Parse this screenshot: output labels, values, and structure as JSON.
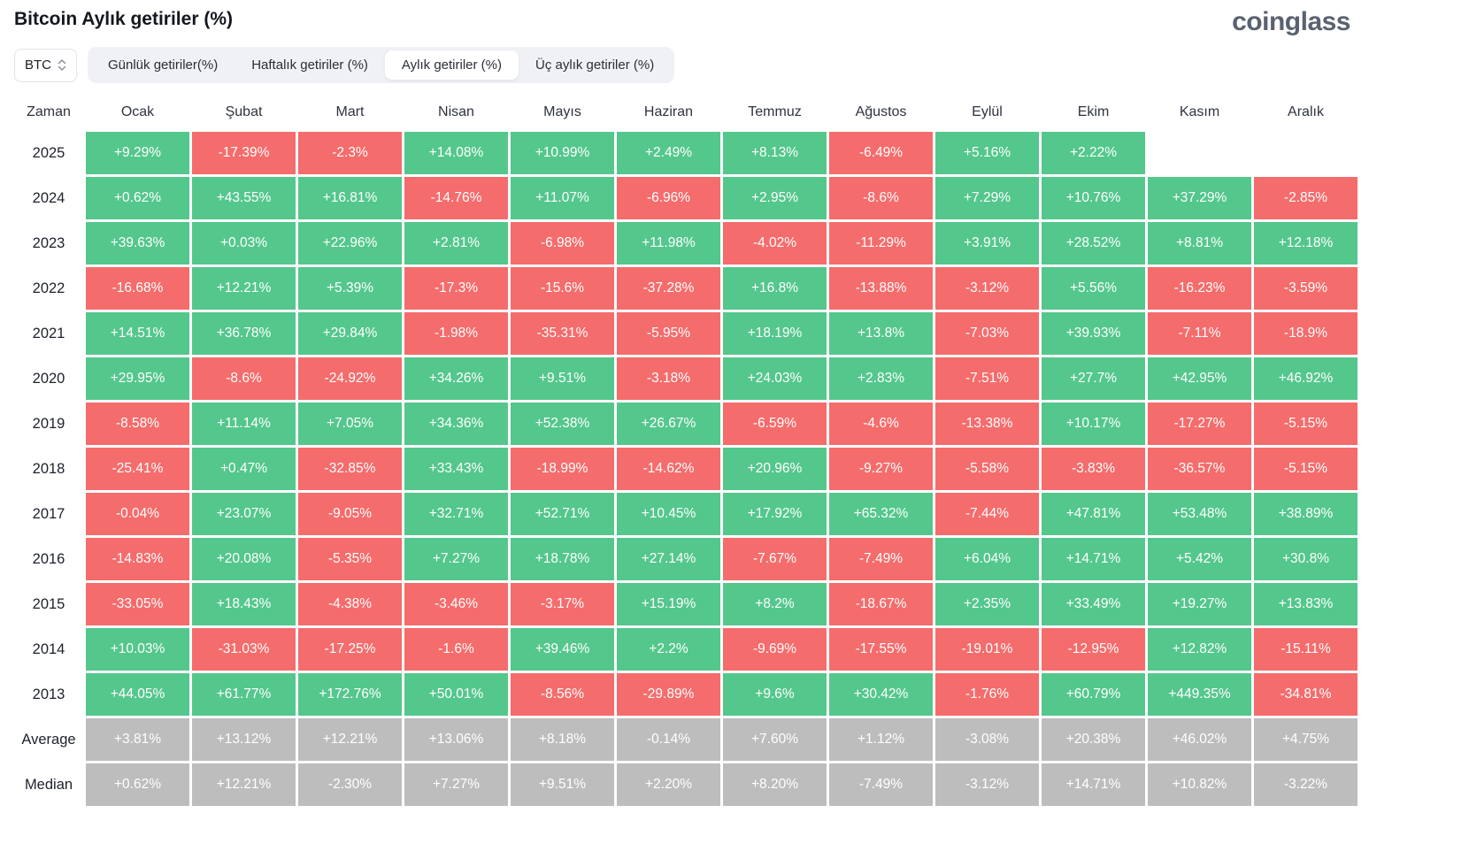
{
  "header": {
    "title": "Bitcoin Aylık getiriler (%)",
    "logo": "coinglass"
  },
  "controls": {
    "symbol": "BTC",
    "tabs": [
      {
        "label": "Günlük getiriler(%)",
        "active": false
      },
      {
        "label": "Haftalık getiriler (%)",
        "active": false
      },
      {
        "label": "Aylık getiriler (%)",
        "active": true
      },
      {
        "label": "Üç aylık getiriler (%)",
        "active": false
      }
    ]
  },
  "colors": {
    "positive": "#54c78c",
    "negative": "#f56c6c",
    "summary": "#bdbdbd"
  },
  "chart_data": {
    "type": "heatmap",
    "title": "Bitcoin Aylık getiriler (%)",
    "row_header": "Zaman",
    "columns": [
      "Ocak",
      "Şubat",
      "Mart",
      "Nisan",
      "Mayıs",
      "Haziran",
      "Temmuz",
      "Ağustos",
      "Eylül",
      "Ekim",
      "Kasım",
      "Aralık"
    ],
    "rows": [
      {
        "label": "2025",
        "type": "year",
        "values": [
          "+9.29%",
          "-17.39%",
          "-2.3%",
          "+14.08%",
          "+10.99%",
          "+2.49%",
          "+8.13%",
          "-6.49%",
          "+5.16%",
          "+2.22%",
          "",
          ""
        ]
      },
      {
        "label": "2024",
        "type": "year",
        "values": [
          "+0.62%",
          "+43.55%",
          "+16.81%",
          "-14.76%",
          "+11.07%",
          "-6.96%",
          "+2.95%",
          "-8.6%",
          "+7.29%",
          "+10.76%",
          "+37.29%",
          "-2.85%"
        ]
      },
      {
        "label": "2023",
        "type": "year",
        "values": [
          "+39.63%",
          "+0.03%",
          "+22.96%",
          "+2.81%",
          "-6.98%",
          "+11.98%",
          "-4.02%",
          "-11.29%",
          "+3.91%",
          "+28.52%",
          "+8.81%",
          "+12.18%"
        ]
      },
      {
        "label": "2022",
        "type": "year",
        "values": [
          "-16.68%",
          "+12.21%",
          "+5.39%",
          "-17.3%",
          "-15.6%",
          "-37.28%",
          "+16.8%",
          "-13.88%",
          "-3.12%",
          "+5.56%",
          "-16.23%",
          "-3.59%"
        ]
      },
      {
        "label": "2021",
        "type": "year",
        "values": [
          "+14.51%",
          "+36.78%",
          "+29.84%",
          "-1.98%",
          "-35.31%",
          "-5.95%",
          "+18.19%",
          "+13.8%",
          "-7.03%",
          "+39.93%",
          "-7.11%",
          "-18.9%"
        ]
      },
      {
        "label": "2020",
        "type": "year",
        "values": [
          "+29.95%",
          "-8.6%",
          "-24.92%",
          "+34.26%",
          "+9.51%",
          "-3.18%",
          "+24.03%",
          "+2.83%",
          "-7.51%",
          "+27.7%",
          "+42.95%",
          "+46.92%"
        ]
      },
      {
        "label": "2019",
        "type": "year",
        "values": [
          "-8.58%",
          "+11.14%",
          "+7.05%",
          "+34.36%",
          "+52.38%",
          "+26.67%",
          "-6.59%",
          "-4.6%",
          "-13.38%",
          "+10.17%",
          "-17.27%",
          "-5.15%"
        ]
      },
      {
        "label": "2018",
        "type": "year",
        "values": [
          "-25.41%",
          "+0.47%",
          "-32.85%",
          "+33.43%",
          "-18.99%",
          "-14.62%",
          "+20.96%",
          "-9.27%",
          "-5.58%",
          "-3.83%",
          "-36.57%",
          "-5.15%"
        ]
      },
      {
        "label": "2017",
        "type": "year",
        "values": [
          "-0.04%",
          "+23.07%",
          "-9.05%",
          "+32.71%",
          "+52.71%",
          "+10.45%",
          "+17.92%",
          "+65.32%",
          "-7.44%",
          "+47.81%",
          "+53.48%",
          "+38.89%"
        ]
      },
      {
        "label": "2016",
        "type": "year",
        "values": [
          "-14.83%",
          "+20.08%",
          "-5.35%",
          "+7.27%",
          "+18.78%",
          "+27.14%",
          "-7.67%",
          "-7.49%",
          "+6.04%",
          "+14.71%",
          "+5.42%",
          "+30.8%"
        ]
      },
      {
        "label": "2015",
        "type": "year",
        "values": [
          "-33.05%",
          "+18.43%",
          "-4.38%",
          "-3.46%",
          "-3.17%",
          "+15.19%",
          "+8.2%",
          "-18.67%",
          "+2.35%",
          "+33.49%",
          "+19.27%",
          "+13.83%"
        ]
      },
      {
        "label": "2014",
        "type": "year",
        "values": [
          "+10.03%",
          "-31.03%",
          "-17.25%",
          "-1.6%",
          "+39.46%",
          "+2.2%",
          "-9.69%",
          "-17.55%",
          "-19.01%",
          "-12.95%",
          "+12.82%",
          "-15.11%"
        ]
      },
      {
        "label": "2013",
        "type": "year",
        "values": [
          "+44.05%",
          "+61.77%",
          "+172.76%",
          "+50.01%",
          "-8.56%",
          "-29.89%",
          "+9.6%",
          "+30.42%",
          "-1.76%",
          "+60.79%",
          "+449.35%",
          "-34.81%"
        ]
      },
      {
        "label": "Average",
        "type": "summary",
        "values": [
          "+3.81%",
          "+13.12%",
          "+12.21%",
          "+13.06%",
          "+8.18%",
          "-0.14%",
          "+7.60%",
          "+1.12%",
          "-3.08%",
          "+20.38%",
          "+46.02%",
          "+4.75%"
        ]
      },
      {
        "label": "Median",
        "type": "summary",
        "values": [
          "+0.62%",
          "+12.21%",
          "-2.30%",
          "+7.27%",
          "+9.51%",
          "+2.20%",
          "+8.20%",
          "-7.49%",
          "-3.12%",
          "+14.71%",
          "+10.82%",
          "-3.22%"
        ]
      }
    ]
  }
}
